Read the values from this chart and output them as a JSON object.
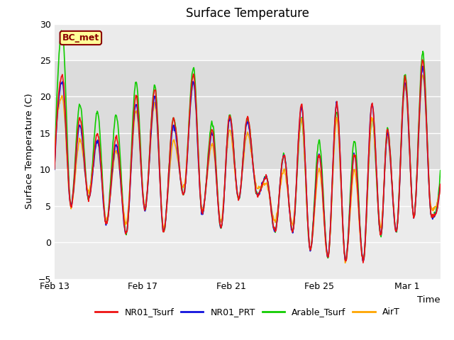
{
  "title": "Surface Temperature",
  "ylabel": "Surface Temperature (C)",
  "xlabel": "Time",
  "ylim": [
    -5,
    30
  ],
  "yticks": [
    -5,
    0,
    5,
    10,
    15,
    20,
    25,
    30
  ],
  "shade_ymin": 10,
  "shade_ymax": 25,
  "annotation_text": "BC_met",
  "annotation_color": "#8B0000",
  "annotation_bg": "#FFFF99",
  "colors": {
    "NR01_Tsurf": "#EE1111",
    "NR01_PRT": "#1111DD",
    "Arable_Tsurf": "#11CC00",
    "AirT": "#FFA500"
  },
  "line_width": 1.2,
  "legend_labels": [
    "NR01_Tsurf",
    "NR01_PRT",
    "Arable_Tsurf",
    "AirT"
  ],
  "plot_bg": "#EBEBEB",
  "shade_bg": "#DCDCDC",
  "xtick_labels": [
    "Feb 13",
    "Feb 17",
    "Feb 21",
    "Feb 25",
    "Mar 1"
  ],
  "xtick_days": [
    0,
    4,
    8,
    12,
    16
  ],
  "total_days": 17.5,
  "n_points": 840
}
